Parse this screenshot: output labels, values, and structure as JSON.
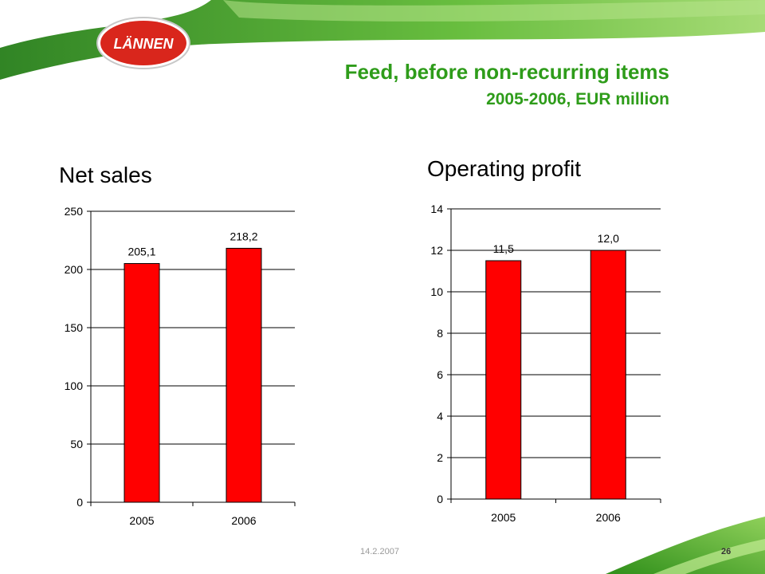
{
  "header": {
    "logo_text": "LÄNNEN",
    "title": "Feed, before non-recurring items",
    "subtitle": "2005-2006, EUR million"
  },
  "footer": {
    "date": "14.2.2007",
    "page_number": "26"
  },
  "colors": {
    "title_green": "#2e9c1a",
    "bar_red": "#ff0000",
    "logo_red": "#d9261c"
  },
  "chart_data": [
    {
      "type": "bar",
      "title": "Net sales",
      "categories": [
        "2005",
        "2006"
      ],
      "values": [
        205.1,
        218.2
      ],
      "value_labels": [
        "205,1",
        "218,2"
      ],
      "ylim": [
        0,
        250
      ],
      "yticks": [
        0,
        50,
        100,
        150,
        200,
        250
      ],
      "grid": true
    },
    {
      "type": "bar",
      "title": "Operating profit",
      "categories": [
        "2005",
        "2006"
      ],
      "values": [
        11.5,
        12.0
      ],
      "value_labels": [
        "11,5",
        "12,0"
      ],
      "ylim": [
        0,
        14
      ],
      "yticks": [
        0,
        2,
        4,
        6,
        8,
        10,
        12,
        14
      ],
      "grid": true
    }
  ]
}
